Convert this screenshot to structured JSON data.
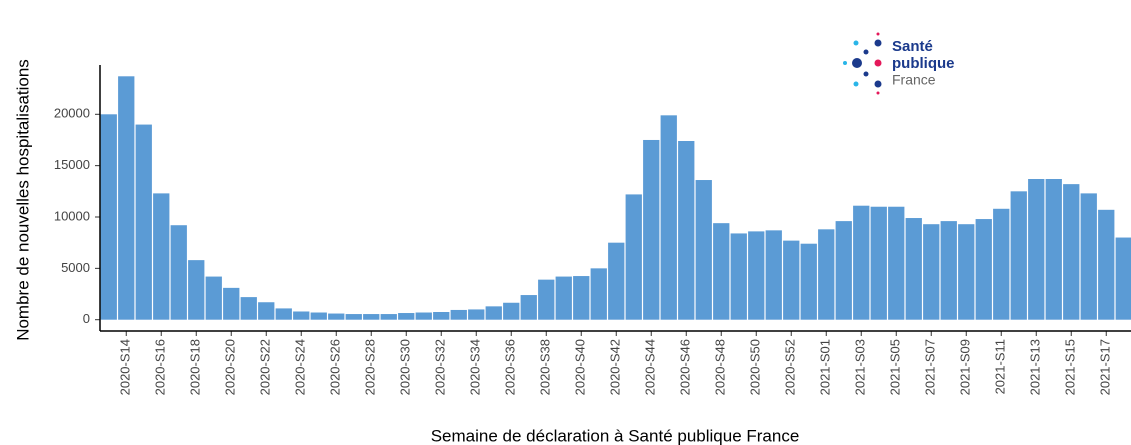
{
  "chart_data": {
    "type": "bar",
    "ylabel": "Nombre de nouvelles hospitalisations",
    "xlabel": "Semaine de déclaration à Santé publique France",
    "logo": [
      "Santé",
      "publique",
      "France"
    ],
    "color": "#5b9bd5",
    "categories": [
      null,
      "2020-S14",
      null,
      "2020-S16",
      null,
      "2020-S18",
      null,
      "2020-S20",
      null,
      "2020-S22",
      null,
      "2020-S24",
      null,
      "2020-S26",
      null,
      "2020-S28",
      null,
      "2020-S30",
      null,
      "2020-S32",
      null,
      "2020-S34",
      null,
      "2020-S36",
      null,
      "2020-S38",
      null,
      "2020-S40",
      null,
      "2020-S42",
      null,
      "2020-S44",
      null,
      "2020-S46",
      null,
      "2020-S48",
      null,
      "2020-S50",
      null,
      "2020-S52",
      null,
      "2021-S01",
      null,
      "2021-S03",
      null,
      "2021-S05",
      null,
      "2021-S07",
      null,
      "2021-S09",
      null,
      "2021-S11",
      null,
      "2021-S13",
      null,
      "2021-S15",
      null,
      "2021-S17",
      null
    ],
    "values": [
      20000,
      23700,
      19000,
      12300,
      9200,
      5800,
      4200,
      3100,
      2200,
      1700,
      1100,
      800,
      700,
      600,
      550,
      550,
      550,
      650,
      700,
      750,
      950,
      1000,
      1300,
      1650,
      2400,
      3900,
      4200,
      4250,
      5000,
      7500,
      12200,
      17500,
      19900,
      17400,
      13600,
      9400,
      8400,
      8600,
      8700,
      7700,
      7400,
      8800,
      9600,
      11100,
      11000,
      11000,
      9900,
      9300,
      9600,
      9300,
      9800,
      10800,
      12500,
      13700,
      13700,
      13200,
      12300,
      10700,
      8000
    ],
    "ylim": [
      -1100,
      24800
    ],
    "yticks": [
      0,
      5000,
      10000,
      15000,
      20000
    ]
  }
}
